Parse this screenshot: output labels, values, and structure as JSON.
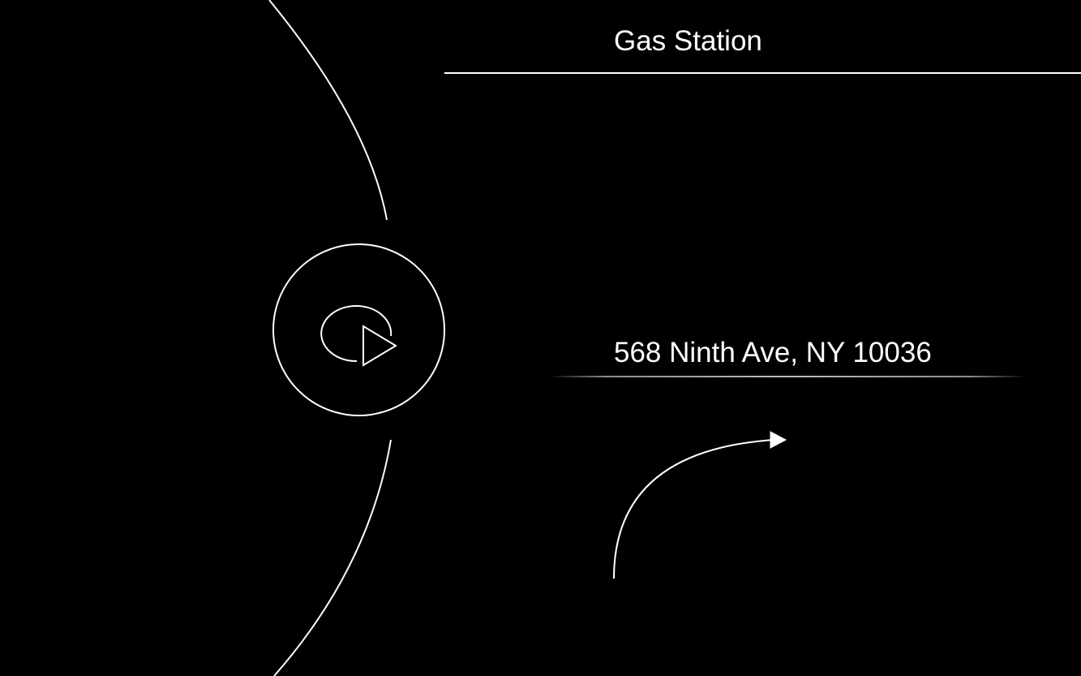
{
  "destination": {
    "name": "Gas Station",
    "address": "568 Ninth Ave, NY 10036"
  },
  "icons": {
    "recenter": "replay-play-icon",
    "next_turn": "turn-right-arrow-icon",
    "route": "route-arc-icon"
  },
  "colors": {
    "background": "#000000",
    "foreground": "#ffffff"
  }
}
